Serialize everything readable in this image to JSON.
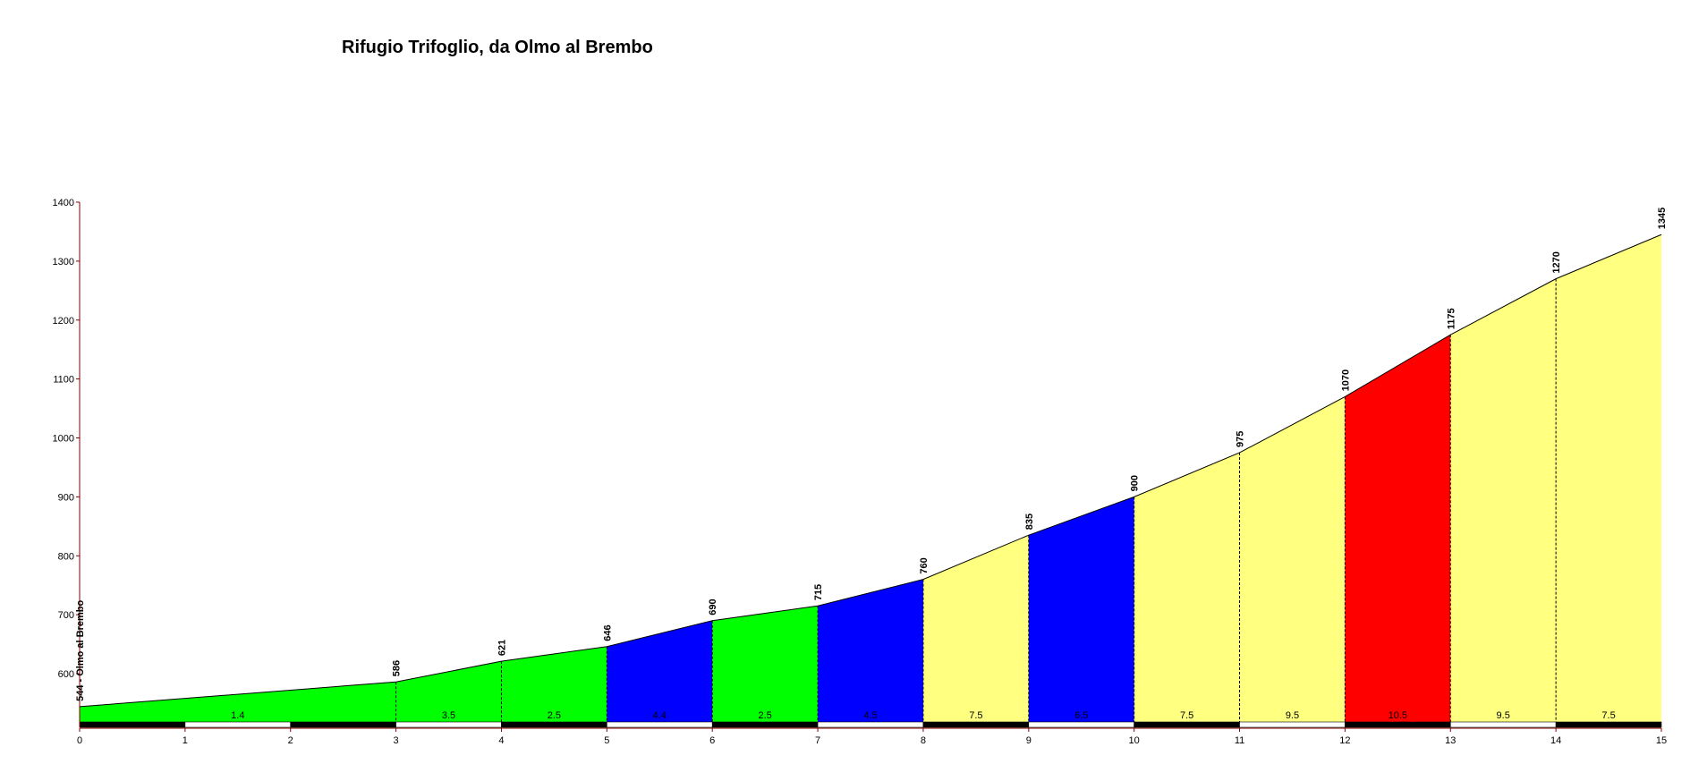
{
  "chart_data": {
    "type": "area",
    "title": "Rifugio Trifoglio, da Olmo al Brembo",
    "xlabel": "",
    "ylabel": "",
    "xlim": [
      0,
      15
    ],
    "ylim": [
      500,
      1400
    ],
    "y_ticks": [
      600,
      700,
      800,
      900,
      1000,
      1100,
      1200,
      1300,
      1400
    ],
    "x_ticks": [
      0,
      1,
      2,
      3,
      4,
      5,
      6,
      7,
      8,
      9,
      10,
      11,
      12,
      13,
      14,
      15
    ],
    "profile": {
      "x": [
        0,
        1,
        2,
        3,
        4,
        5,
        6,
        7,
        8,
        9,
        10,
        11,
        12,
        13,
        14,
        15
      ],
      "elevation": [
        544,
        558,
        572,
        586,
        621,
        646,
        690,
        715,
        760,
        835,
        900,
        975,
        1070,
        1175,
        1270,
        1345
      ]
    },
    "elevation_labels": [
      {
        "x": 0,
        "value": 544,
        "text": "544 - Olmo al Brembo"
      },
      {
        "x": 3,
        "value": 586,
        "text": "586"
      },
      {
        "x": 4,
        "value": 621,
        "text": "621"
      },
      {
        "x": 5,
        "value": 646,
        "text": "646"
      },
      {
        "x": 6,
        "value": 690,
        "text": "690"
      },
      {
        "x": 7,
        "value": 715,
        "text": "715"
      },
      {
        "x": 8,
        "value": 760,
        "text": "760"
      },
      {
        "x": 9,
        "value": 835,
        "text": "835"
      },
      {
        "x": 10,
        "value": 900,
        "text": "900"
      },
      {
        "x": 11,
        "value": 975,
        "text": "975"
      },
      {
        "x": 12,
        "value": 1070,
        "text": "1070"
      },
      {
        "x": 13,
        "value": 1175,
        "text": "1175"
      },
      {
        "x": 14,
        "value": 1270,
        "text": "1270"
      },
      {
        "x": 15,
        "value": 1345,
        "text": "1345"
      }
    ],
    "segments": [
      {
        "from": 0,
        "to": 3,
        "gradient": "1.4",
        "color": "#00ff00"
      },
      {
        "from": 3,
        "to": 4,
        "gradient": "3.5",
        "color": "#00ff00"
      },
      {
        "from": 4,
        "to": 5,
        "gradient": "2.5",
        "color": "#00ff00"
      },
      {
        "from": 5,
        "to": 6,
        "gradient": "4.4",
        "color": "#0000ff"
      },
      {
        "from": 6,
        "to": 7,
        "gradient": "2.5",
        "color": "#00ff00"
      },
      {
        "from": 7,
        "to": 8,
        "gradient": "4.5",
        "color": "#0000ff"
      },
      {
        "from": 8,
        "to": 9,
        "gradient": "7.5",
        "color": "#ffff80"
      },
      {
        "from": 9,
        "to": 10,
        "gradient": "6.5",
        "color": "#0000ff"
      },
      {
        "from": 10,
        "to": 11,
        "gradient": "7.5",
        "color": "#ffff80"
      },
      {
        "from": 11,
        "to": 12,
        "gradient": "9.5",
        "color": "#ffff80"
      },
      {
        "from": 12,
        "to": 13,
        "gradient": "10.5",
        "color": "#ff0000"
      },
      {
        "from": 13,
        "to": 14,
        "gradient": "9.5",
        "color": "#ffff80"
      },
      {
        "from": 14,
        "to": 15,
        "gradient": "7.5",
        "color": "#ffff80"
      }
    ],
    "grid": false,
    "legend": "none",
    "axis_color": "#800000"
  }
}
